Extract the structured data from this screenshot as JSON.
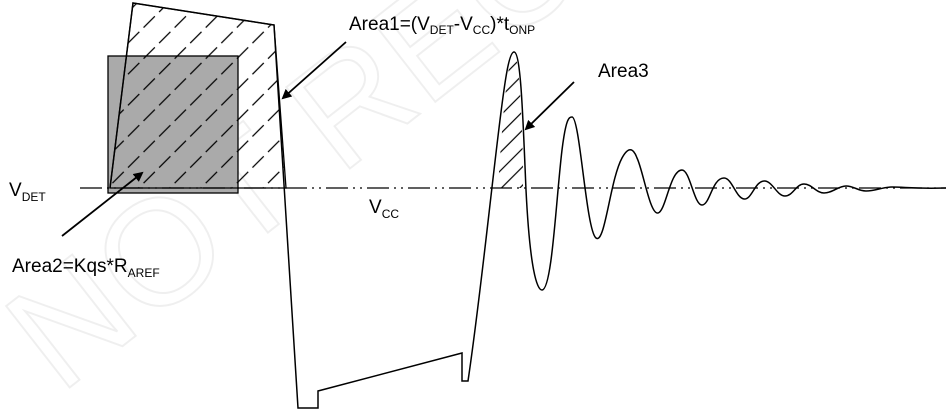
{
  "labels": {
    "area1": {
      "prefix": "Area1=(V",
      "s1": "DET",
      "mid": "-V",
      "s2": "CC",
      "tail": ")*t",
      "s3": "ONP"
    },
    "area2": {
      "prefix": "Area2=Kqs*R",
      "s1": "AREF"
    },
    "area3": {
      "text": "Area3"
    },
    "vdet": {
      "main": "V",
      "s1": "DET"
    },
    "vcc": {
      "main": "V",
      "s1": "CC"
    }
  },
  "watermark": {
    "text": "NOT RECOMMENDED FOR NEW DESIGNS"
  },
  "colors": {
    "line": "#000000",
    "area2_fill": "#aaaaaa",
    "background": "#ffffff"
  }
}
